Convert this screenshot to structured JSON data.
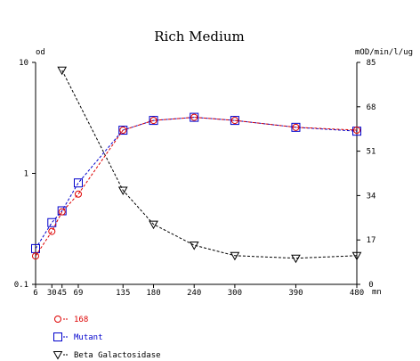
{
  "chart_data": {
    "type": "line",
    "title": "Rich Medium",
    "x_unit": "mn",
    "left_axis": {
      "label": "od",
      "scale": "log",
      "range": [
        0.1,
        10
      ],
      "ticks": [
        {
          "value": 0.1,
          "label": "0.1"
        },
        {
          "value": 1,
          "label": "1"
        },
        {
          "value": 10,
          "label": "10"
        }
      ]
    },
    "right_axis": {
      "label": "mOD/min/l/ug",
      "scale": "linear",
      "range": [
        0,
        85
      ],
      "ticks": [
        {
          "value": 0,
          "label": "0"
        },
        {
          "value": 17,
          "label": "17"
        },
        {
          "value": 34,
          "label": "34"
        },
        {
          "value": 51,
          "label": "51"
        },
        {
          "value": 68,
          "label": "68"
        },
        {
          "value": 85,
          "label": "85"
        }
      ]
    },
    "x_axis": {
      "range": [
        6,
        480
      ],
      "ticks": [
        {
          "value": 6,
          "label": "6"
        },
        {
          "value": 30,
          "label": "30"
        },
        {
          "value": 45,
          "label": "45"
        },
        {
          "value": 69,
          "label": "69"
        },
        {
          "value": 135,
          "label": "135"
        },
        {
          "value": 180,
          "label": "180"
        },
        {
          "value": 240,
          "label": "240"
        },
        {
          "value": 300,
          "label": "300"
        },
        {
          "value": 390,
          "label": "390"
        },
        {
          "value": 480,
          "label": "480"
        }
      ]
    },
    "series": [
      {
        "name": "168",
        "axis": "left",
        "marker": "circle",
        "color": "#dd0000",
        "x": [
          6,
          30,
          45,
          69,
          135,
          180,
          240,
          300,
          390,
          480
        ],
        "y": [
          0.18,
          0.3,
          0.45,
          0.65,
          2.45,
          3.0,
          3.2,
          3.0,
          2.6,
          2.45
        ]
      },
      {
        "name": "Mutant",
        "axis": "left",
        "marker": "square",
        "color": "#0000cc",
        "x": [
          6,
          30,
          45,
          69,
          135,
          180,
          240,
          300,
          390,
          480
        ],
        "y": [
          0.21,
          0.36,
          0.46,
          0.82,
          2.45,
          3.0,
          3.2,
          3.0,
          2.6,
          2.4
        ]
      },
      {
        "name": "Beta Galactosidase",
        "axis": "right",
        "marker": "triangle-down",
        "color": "#000000",
        "x": [
          45,
          135,
          180,
          240,
          300,
          390,
          480
        ],
        "y": [
          82,
          36,
          23,
          15,
          11,
          10,
          11
        ]
      }
    ],
    "legend_position": "bottom-left"
  }
}
